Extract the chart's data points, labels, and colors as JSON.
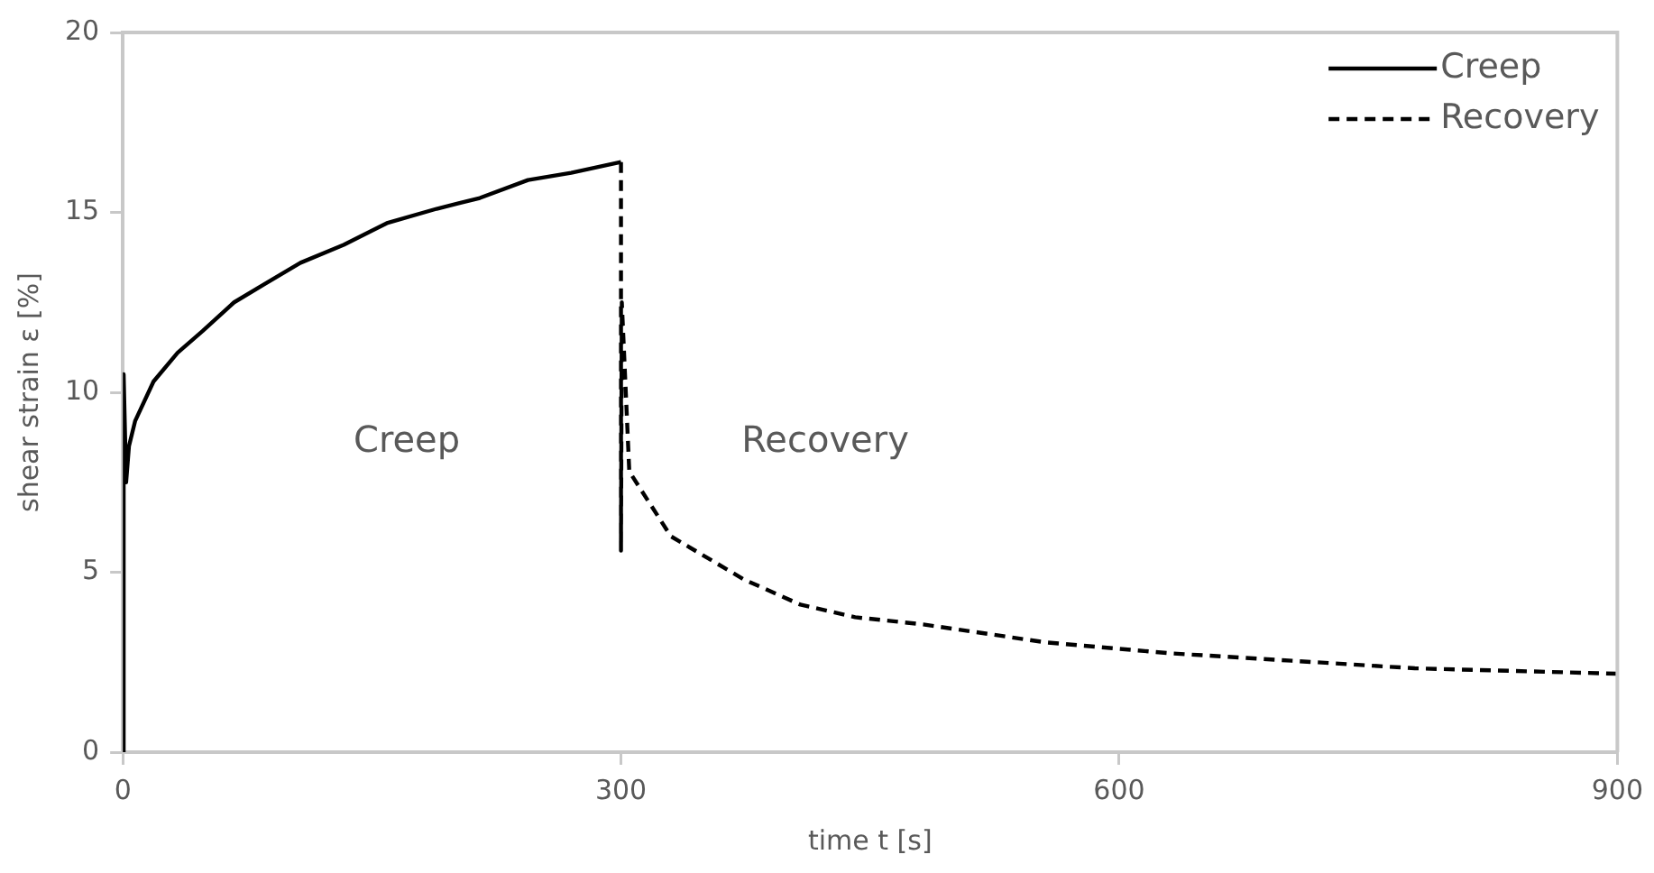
{
  "chart_data": {
    "type": "line",
    "xlabel": "time t [s]",
    "ylabel": "shear strain ε [%]",
    "xlim": [
      0,
      900
    ],
    "xticks": [
      0,
      300,
      600,
      900
    ],
    "ylim": [
      0,
      20
    ],
    "yticks": [
      0,
      5,
      10,
      15,
      20
    ],
    "grid": false,
    "legend": "top right",
    "marker": "none",
    "annotations": [
      "Creep",
      "Recovery"
    ],
    "series": [
      {
        "name": "Creep",
        "color": "#000000",
        "line_style": "solid",
        "x": [
          0,
          0.5,
          2,
          3.7,
          7.4,
          18.5,
          33,
          48,
          67,
          85,
          107,
          133,
          159,
          189,
          215,
          244,
          270,
          300
        ],
        "values": [
          0,
          10.5,
          7.5,
          8.5,
          9.2,
          10.3,
          11.1,
          11.7,
          12.5,
          13.0,
          13.6,
          14.1,
          14.7,
          15.1,
          15.4,
          15.9,
          16.1,
          16.4
        ]
      },
      {
        "name": "Recovery",
        "color": "#000000",
        "line_style": "dashed",
        "x": [
          300,
          300,
          300.5,
          305,
          330,
          374,
          408,
          441,
          482,
          556,
          630,
          704,
          778,
          900
        ],
        "values": [
          16.4,
          5.6,
          12.5,
          7.8,
          6.0,
          4.8,
          4.1,
          3.75,
          3.55,
          3.05,
          2.75,
          2.54,
          2.33,
          2.18
        ]
      }
    ]
  }
}
